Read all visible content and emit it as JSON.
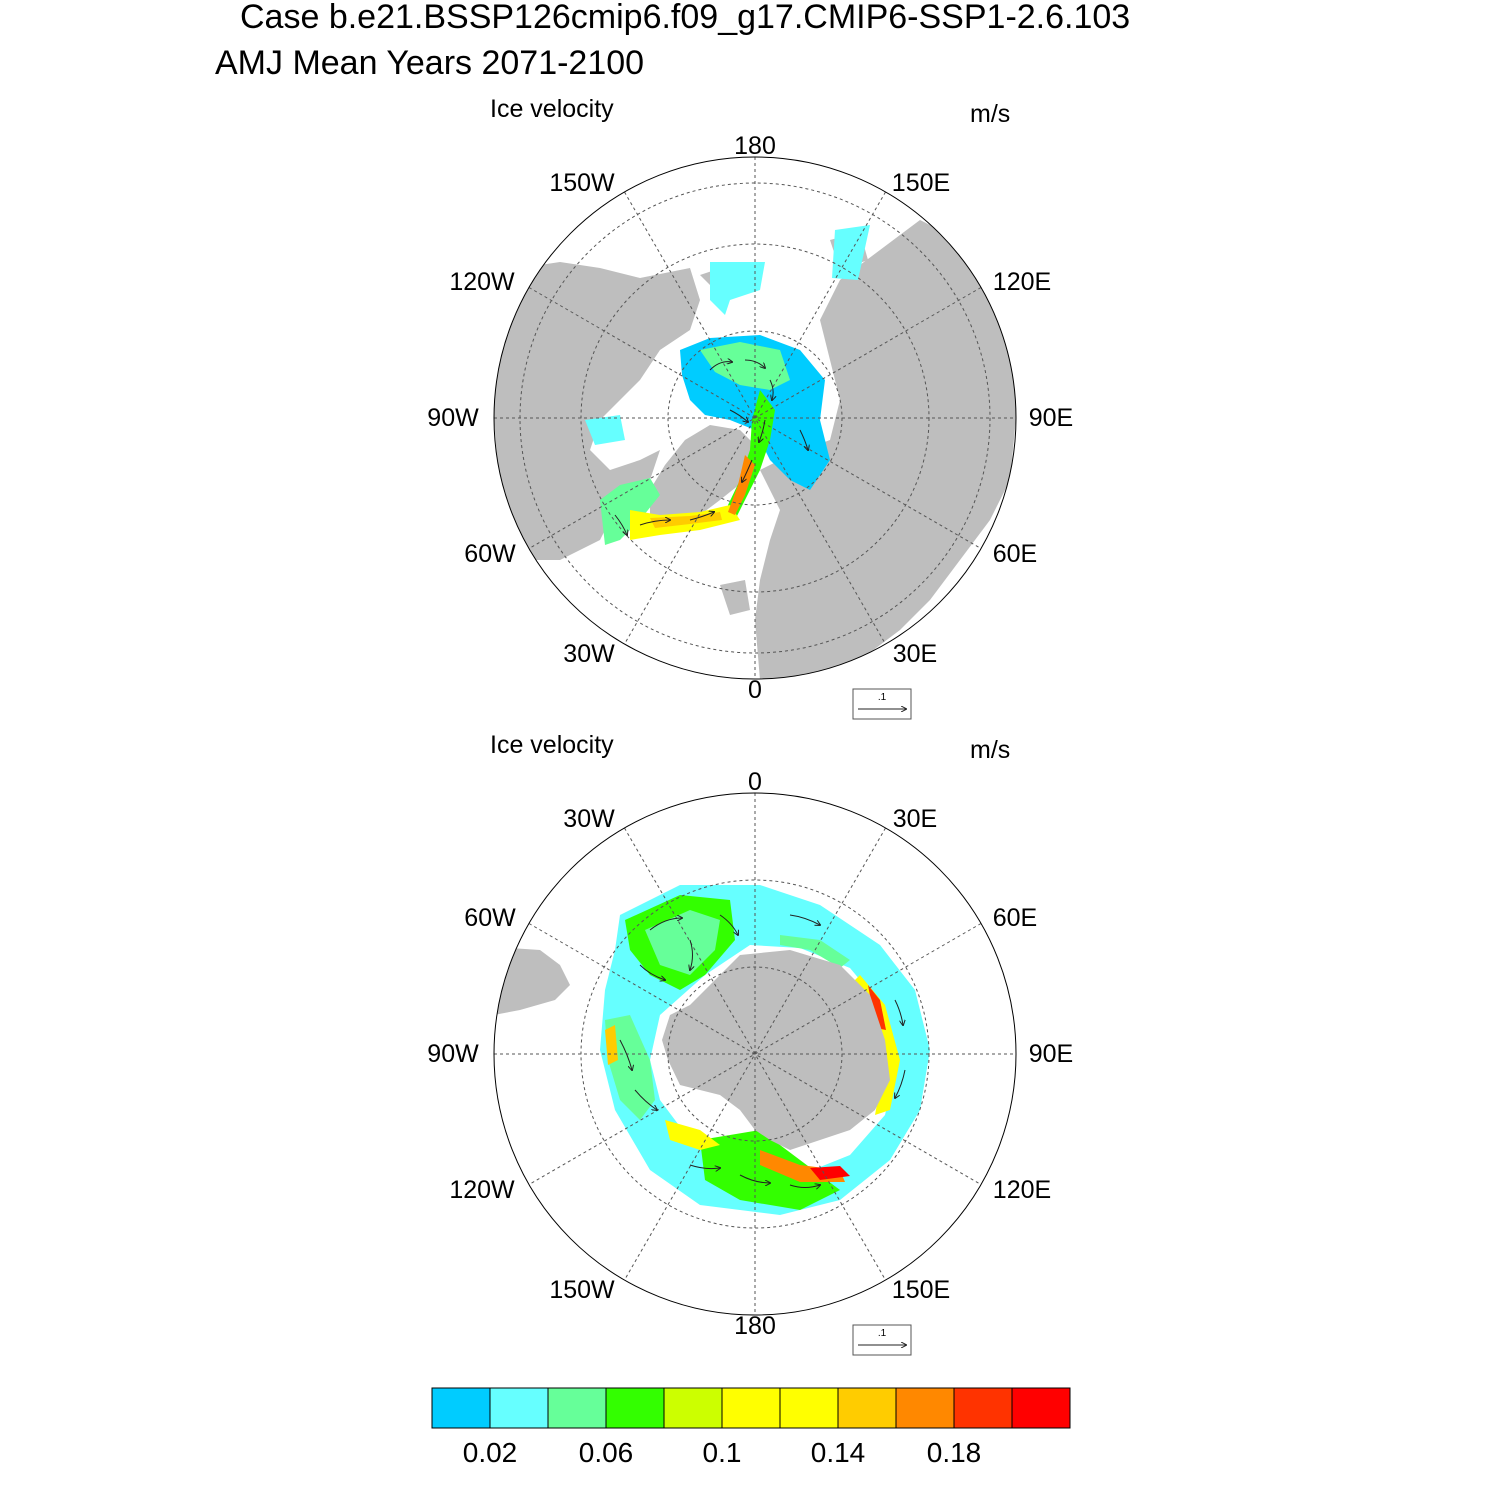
{
  "header": {
    "title_line1": "Case b.e21.BSSP126cmip6.f09_g17.CMIP6-SSP1-2.6.103",
    "title_line2": "AMJ Mean   Years 2071-2100"
  },
  "colors": {
    "land": "#bebebe",
    "ocean": "#ffffff",
    "grid": "#555555",
    "vector": "#222222"
  },
  "chart_data": [
    {
      "type": "heatmap",
      "name": "north-polar-map",
      "title": "Ice velocity",
      "units": "m/s",
      "projection": "north-polar-stereographic",
      "longitude_labels": [
        "180",
        "150E",
        "120E",
        "90E",
        "60E",
        "30E",
        "0",
        "30W",
        "60W",
        "90W",
        "120W",
        "150W"
      ],
      "reference_vector": {
        "label": ".1",
        "magnitude": 0.1
      }
    },
    {
      "type": "heatmap",
      "name": "south-polar-map",
      "title": "Ice velocity",
      "units": "m/s",
      "projection": "south-polar-stereographic",
      "longitude_labels": [
        "0",
        "30E",
        "60E",
        "90E",
        "120E",
        "150E",
        "180",
        "150W",
        "120W",
        "90W",
        "60W",
        "30W"
      ],
      "reference_vector": {
        "label": ".1",
        "magnitude": 0.1
      }
    },
    {
      "type": "colorbar",
      "name": "velocity-colorbar",
      "colors": [
        "#00ccff",
        "#66ffff",
        "#66ff99",
        "#33ff00",
        "#ccff00",
        "#ffff00",
        "#ffff00",
        "#ffcc00",
        "#ff8800",
        "#ff3300",
        "#ff0000"
      ],
      "tick_labels": [
        "0.02",
        "0.06",
        "0.1",
        "0.14",
        "0.18"
      ],
      "tick_boundaries": [
        1,
        3,
        5,
        7,
        9
      ]
    }
  ]
}
